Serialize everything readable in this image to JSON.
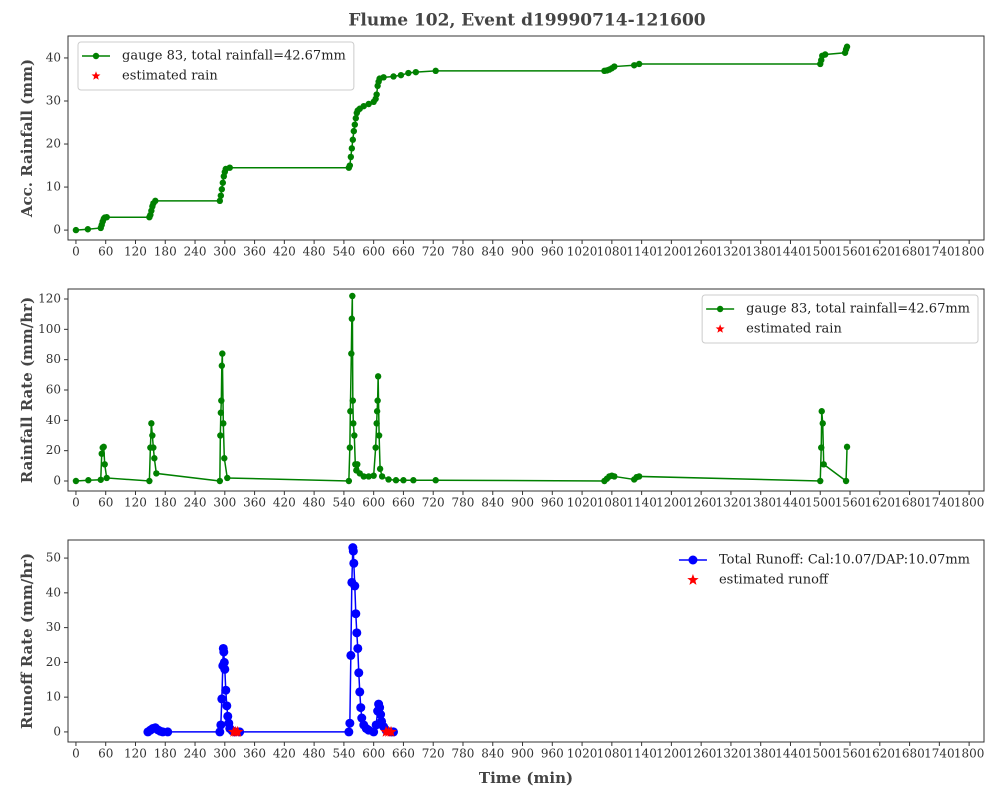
{
  "chart_data": [
    {
      "type": "line",
      "title": "Flume 102, Event d19990714-121600",
      "y_label": "Acc. Rainfall (mm)",
      "xlim": [
        -16,
        1830
      ],
      "xticks": [
        0,
        60,
        120,
        180,
        240,
        300,
        360,
        420,
        480,
        540,
        600,
        660,
        720,
        780,
        840,
        900,
        960,
        1020,
        1080,
        1140,
        1200,
        1260,
        1320,
        1380,
        1440,
        1500,
        1560,
        1620,
        1680,
        1740,
        1800
      ],
      "ylim": [
        -2.3,
        45.1
      ],
      "yticks": [
        0,
        10,
        20,
        30,
        40
      ],
      "legend": "upper left",
      "legend_frame": true,
      "series": [
        {
          "name": "gauge 83, total rainfall=42.67mm",
          "color": "#008000",
          "marker": "circle",
          "x": [
            0,
            24,
            50,
            52,
            54,
            56,
            58,
            62,
            148,
            150,
            152,
            154,
            156,
            160,
            290,
            292,
            294,
            296,
            298,
            300,
            302,
            310,
            550,
            552,
            554,
            556,
            558,
            560,
            562,
            564,
            566,
            568,
            572,
            580,
            590,
            600,
            604,
            606,
            608,
            610,
            612,
            620,
            640,
            655,
            670,
            685,
            725,
            1065,
            1070,
            1075,
            1080,
            1085,
            1125,
            1135,
            1500,
            1502,
            1504,
            1510,
            1550,
            1552,
            1554
          ],
          "values": [
            0,
            0.2,
            0.5,
            1.2,
            2.0,
            2.6,
            2.9,
            3.0,
            3.0,
            3.5,
            4.5,
            5.5,
            6.2,
            6.8,
            6.8,
            8,
            9.5,
            11,
            12.5,
            13.5,
            14.2,
            14.5,
            14.5,
            15,
            17,
            19,
            21,
            23,
            24.5,
            26,
            27.2,
            27.8,
            28.2,
            28.8,
            29.3,
            29.8,
            30.5,
            31.5,
            33.5,
            34.5,
            35.2,
            35.5,
            35.7,
            36,
            36.5,
            36.7,
            37,
            37,
            37.1,
            37.3,
            37.6,
            38,
            38.3,
            38.6,
            38.6,
            39.5,
            40.5,
            40.8,
            41.2,
            42,
            42.6
          ]
        },
        {
          "name": "estimated rain",
          "color": "#ff0000",
          "marker": "star",
          "x": [],
          "values": []
        }
      ]
    },
    {
      "type": "line",
      "y_label": "Rainfall Rate (mm/hr)",
      "xlim": [
        -16,
        1830
      ],
      "xticks": [
        0,
        60,
        120,
        180,
        240,
        300,
        360,
        420,
        480,
        540,
        600,
        660,
        720,
        780,
        840,
        900,
        960,
        1020,
        1080,
        1140,
        1200,
        1260,
        1320,
        1380,
        1440,
        1500,
        1560,
        1620,
        1680,
        1740,
        1800
      ],
      "ylim": [
        -6.6,
        126.6
      ],
      "yticks": [
        0,
        20,
        40,
        60,
        80,
        100,
        120
      ],
      "legend": "upper right",
      "legend_frame": true,
      "series": [
        {
          "name": "gauge 83, total rainfall=42.67mm",
          "color": "#008000",
          "marker": "circle",
          "x": [
            0,
            25,
            50,
            52,
            54,
            56,
            58,
            62,
            148,
            150,
            152,
            154,
            156,
            158,
            162,
            290,
            291,
            292,
            293,
            294,
            295,
            297,
            299,
            305,
            550,
            552,
            553,
            555,
            556,
            557,
            558,
            559,
            561,
            563,
            565,
            567,
            572,
            580,
            590,
            600,
            604,
            606,
            607,
            608,
            609,
            611,
            613,
            617,
            630,
            645,
            660,
            680,
            725,
            1065,
            1070,
            1075,
            1080,
            1085,
            1125,
            1130,
            1135,
            1500,
            1502,
            1503,
            1505,
            1507,
            1552,
            1554
          ],
          "values": [
            0,
            0.5,
            0.8,
            18,
            22,
            22.5,
            11,
            2,
            0,
            22,
            38,
            30,
            22,
            15,
            5,
            0,
            30,
            45,
            53,
            76,
            84,
            38,
            15,
            2,
            0,
            22,
            46,
            84,
            107,
            122,
            53,
            38,
            30,
            11,
            7,
            11,
            5,
            3,
            3,
            3.5,
            22,
            38,
            46,
            53,
            69,
            30,
            8,
            3,
            1,
            0.5,
            0.5,
            0.5,
            0.5,
            0,
            1.5,
            3,
            3.5,
            3,
            1,
            2.5,
            3,
            0,
            22,
            46,
            38,
            11,
            0,
            22.5
          ]
        },
        {
          "name": "estimated rain",
          "color": "#ff0000",
          "marker": "star",
          "x": [],
          "values": []
        }
      ]
    },
    {
      "type": "line",
      "y_label": "Runoff Rate (mm/hr)",
      "x_label": "Time (min)",
      "xlim": [
        -16,
        1830
      ],
      "xticks": [
        0,
        60,
        120,
        180,
        240,
        300,
        360,
        420,
        480,
        540,
        600,
        660,
        720,
        780,
        840,
        900,
        960,
        1020,
        1080,
        1140,
        1200,
        1260,
        1320,
        1380,
        1440,
        1500,
        1560,
        1620,
        1680,
        1740,
        1800
      ],
      "ylim": [
        -2.9,
        55.2
      ],
      "yticks": [
        0,
        10,
        20,
        30,
        40,
        50
      ],
      "legend": "upper right",
      "legend_frame": false,
      "series": [
        {
          "name": "Total Runoff: Cal:10.07/DAP:10.07mm",
          "color": "#0000ff",
          "marker": "circle",
          "x": [
            145,
            150,
            155,
            160,
            165,
            170,
            175,
            185,
            290,
            292,
            294,
            296,
            297,
            298,
            299,
            300,
            302,
            304,
            306,
            308,
            310,
            315,
            320,
            330,
            550,
            552,
            554,
            556,
            558,
            559,
            560,
            562,
            564,
            566,
            568,
            570,
            572,
            574,
            576,
            580,
            585,
            590,
            600,
            605,
            608,
            610,
            612,
            614,
            616,
            620,
            625,
            635,
            640
          ],
          "values": [
            0,
            0.5,
            1,
            1.2,
            0.6,
            0.2,
            0,
            0,
            0,
            2,
            9.5,
            19,
            24,
            23,
            20,
            18,
            12,
            7.5,
            4.5,
            2.5,
            1,
            0.3,
            0,
            0,
            0,
            2.5,
            22,
            43,
            53,
            52,
            48.5,
            42,
            34,
            28.5,
            24,
            17,
            11.5,
            7,
            4,
            2,
            1,
            0.5,
            0,
            2,
            6,
            8,
            7,
            5,
            3,
            1.5,
            0.5,
            0,
            0
          ]
        },
        {
          "name": "estimated runoff",
          "color": "#ff0000",
          "marker": "star",
          "x": [
            318,
            322,
            326,
            625,
            630,
            635
          ],
          "values": [
            0,
            0,
            0,
            0,
            0,
            0
          ]
        }
      ]
    }
  ]
}
